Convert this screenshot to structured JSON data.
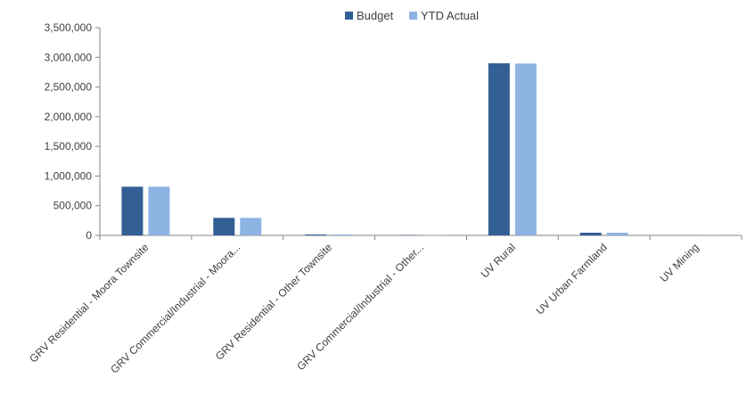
{
  "chart_data": {
    "type": "bar",
    "categories": [
      "GRV Residential - Moora Townsite",
      "GRV Commercial/Industrial - Moora...",
      "GRV Residential - Other Townsite",
      "GRV Commercial/Industrial - Other...",
      "UV Rural",
      "UV Urban Farmland",
      "UV Mining"
    ],
    "series": [
      {
        "name": "Budget",
        "color": "#335F95",
        "values": [
          820000,
          295000,
          15000,
          5000,
          2900000,
          45000,
          1000
        ]
      },
      {
        "name": "YTD Actual",
        "color": "#8EB4E3",
        "values": [
          820000,
          295000,
          15000,
          5000,
          2895000,
          45000,
          1000
        ]
      }
    ],
    "ylim": [
      0,
      3500000
    ],
    "yticks": [
      0,
      500000,
      1000000,
      1500000,
      2000000,
      2500000,
      3000000,
      3500000
    ],
    "ytick_labels": [
      "0",
      "500,000",
      "1,000,000",
      "1,500,000",
      "2,000,000",
      "2,500,000",
      "3,000,000",
      "3,500,000"
    ],
    "legend_position": "top-center",
    "grid": false,
    "title": "",
    "xlabel": "",
    "ylabel": ""
  }
}
